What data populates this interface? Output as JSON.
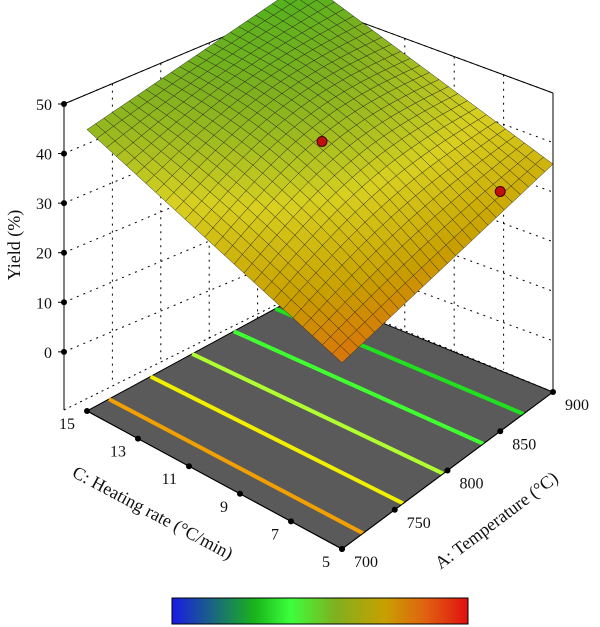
{
  "chart_data": {
    "type": "surface3d",
    "title": "",
    "zlabel": "Yield (%)",
    "xlabel": "A: Temperature (°C)",
    "ylabel": "C: Heating rate (°C/min)",
    "x_ticks": [
      700,
      750,
      800,
      850,
      900
    ],
    "y_ticks": [
      5,
      7,
      9,
      11,
      13,
      15
    ],
    "z_ticks": [
      0,
      10,
      20,
      30,
      40,
      50
    ],
    "xlim": [
      700,
      900
    ],
    "ylim": [
      5,
      15
    ],
    "zlim": [
      0,
      50
    ],
    "surface_corners": [
      {
        "temperature": 700,
        "heating_rate": 15,
        "yield": 38
      },
      {
        "temperature": 700,
        "heating_rate": 5,
        "yield": 22
      },
      {
        "temperature": 900,
        "heating_rate": 5,
        "yield": 29
      },
      {
        "temperature": 900,
        "heating_rate": 15,
        "yield": 43
      }
    ],
    "design_points": [
      {
        "temperature": 800,
        "heating_rate": 10,
        "yield": 36
      },
      {
        "temperature": 850,
        "heating_rate": 5,
        "yield": 31
      }
    ],
    "contour_levels": [
      25,
      30,
      35,
      40,
      45
    ],
    "colormap": [
      "#1a1ae6",
      "#1ab41a",
      "#3cff3c",
      "#7fb01f",
      "#c8a000",
      "#e06010",
      "#e01010"
    ],
    "floor_color": "#5a5a5a"
  }
}
